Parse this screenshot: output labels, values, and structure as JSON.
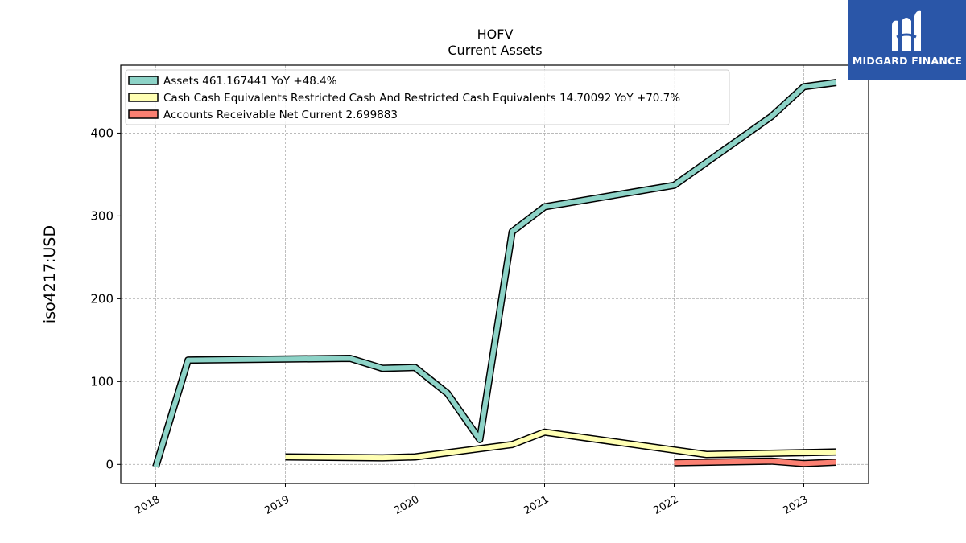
{
  "chart_data": {
    "type": "line",
    "title": "HOFV",
    "subtitle": "Current  Assets",
    "ylabel": "iso4217:USD",
    "xlabel": "",
    "xlim": [
      2017.73,
      2023.5
    ],
    "ylim": [
      -23,
      482
    ],
    "yticks": [
      0,
      100,
      200,
      300,
      400
    ],
    "xticks": [
      "2018",
      "2019",
      "2020",
      "2021",
      "2022",
      "2023"
    ],
    "grid": true,
    "legend_position": "top-left",
    "series": [
      {
        "name": "Assets",
        "legend": "Assets  461.167441 YoY +48.4%",
        "color": "#8dd3c7",
        "x": [
          2018.0,
          2018.25,
          2019.5,
          2019.75,
          2020.0,
          2020.25,
          2020.5,
          2020.75,
          2021.0,
          2022.0,
          2022.75,
          2023.0,
          2023.25
        ],
        "y": [
          -3,
          126,
          128,
          116,
          117,
          86,
          30,
          281,
          311,
          337,
          420,
          456,
          461
        ]
      },
      {
        "name": "Cash Cash Equivalents Restricted Cash And Restricted Cash Equivalents",
        "legend": "Cash Cash Equivalents Restricted Cash And Restricted Cash Equivalents  14.70092 YoY +70.7%",
        "color": "#ffffb3",
        "x": [
          2019.0,
          2019.75,
          2020.0,
          2020.75,
          2021.0,
          2022.25,
          2023.25
        ],
        "y": [
          9,
          8,
          9,
          24,
          39,
          12,
          15
        ]
      },
      {
        "name": "Accounts Receivable Net Current",
        "legend": "Accounts Receivable Net Current  2.699883",
        "color": "#fb8072",
        "x": [
          2022.0,
          2022.75,
          2023.0,
          2023.25
        ],
        "y": [
          2,
          4,
          1,
          2.7
        ]
      }
    ]
  },
  "branding": {
    "logo_text": "MIDGARD FINANCE"
  }
}
